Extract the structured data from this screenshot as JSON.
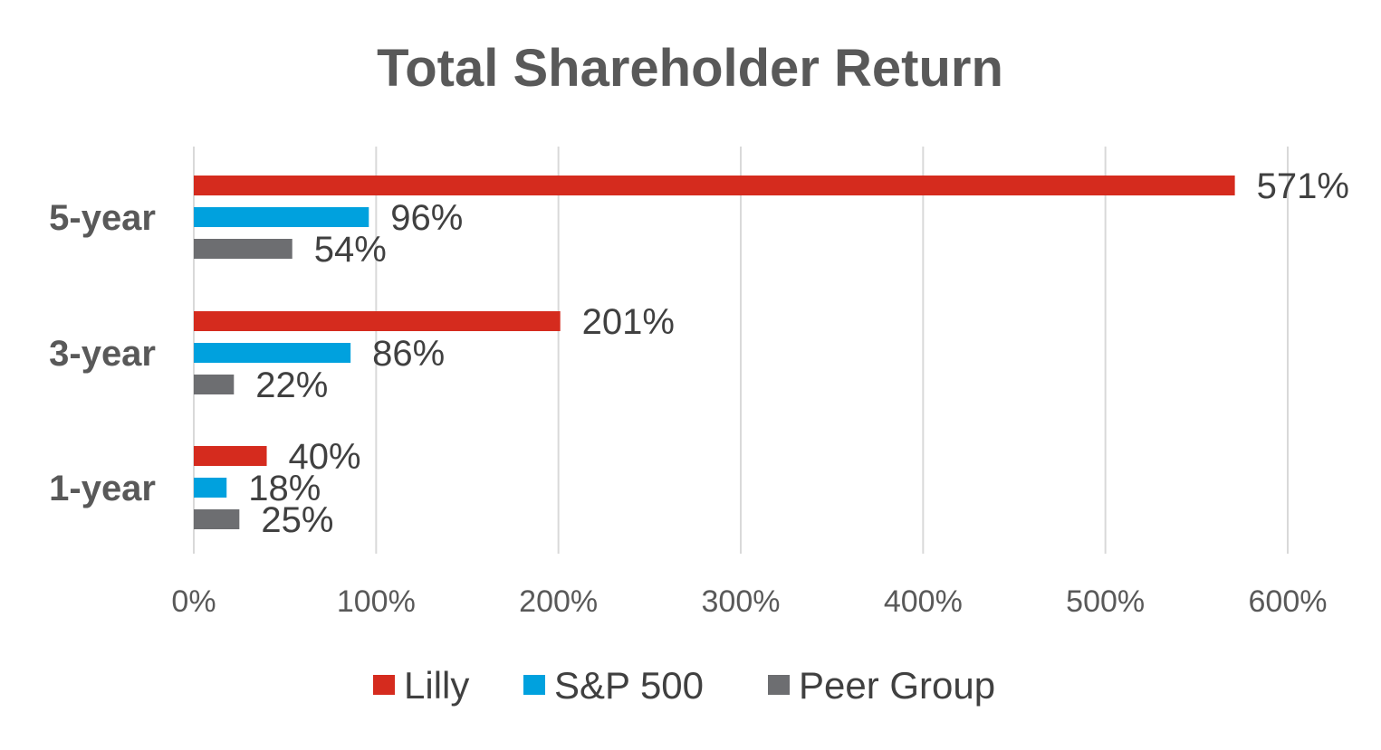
{
  "chart_data": {
    "type": "bar",
    "orientation": "horizontal",
    "title": "Total Shareholder Return",
    "categories": [
      "5-year",
      "3-year",
      "1-year"
    ],
    "series": [
      {
        "name": "Lilly",
        "color": "#D52B1E",
        "values": [
          571,
          201,
          40
        ],
        "labels": [
          "571%",
          "201%",
          "40%"
        ]
      },
      {
        "name": "S&P 500",
        "color": "#00A1DE",
        "values": [
          96,
          86,
          18
        ],
        "labels": [
          "96%",
          "86%",
          "18%"
        ]
      },
      {
        "name": "Peer Group",
        "color": "#6D6E71",
        "values": [
          54,
          22,
          25
        ],
        "labels": [
          "54%",
          "22%",
          "25%"
        ]
      }
    ],
    "xlim": [
      0,
      600
    ],
    "xticks": [
      "0%",
      "100%",
      "200%",
      "300%",
      "400%",
      "500%",
      "600%"
    ],
    "grid": true,
    "legend": "bottom"
  }
}
